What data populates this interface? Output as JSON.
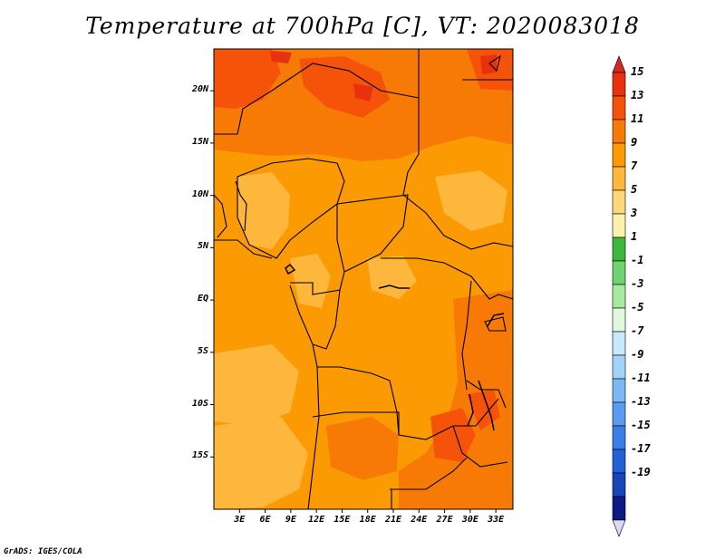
{
  "title": "Temperature at 700hPa [C], VT: 2020083018",
  "footer": "GrADS: IGES/COLA",
  "map": {
    "variable": "Temperature at 700hPa",
    "units": "C",
    "valid_time": "2020083018",
    "region": "Central Africa",
    "lon_range": [
      0,
      35
    ],
    "lat_range": [
      -20,
      24
    ]
  },
  "axes": {
    "y_ticks": [
      {
        "label": "20N",
        "lat": 20
      },
      {
        "label": "15N",
        "lat": 15
      },
      {
        "label": "10N",
        "lat": 10
      },
      {
        "label": "5N",
        "lat": 5
      },
      {
        "label": "EQ",
        "lat": 0
      },
      {
        "label": "5S",
        "lat": -5
      },
      {
        "label": "10S",
        "lat": -10
      },
      {
        "label": "15S",
        "lat": -15
      }
    ],
    "x_ticks": [
      {
        "label": "3E",
        "lon": 3
      },
      {
        "label": "6E",
        "lon": 6
      },
      {
        "label": "9E",
        "lon": 9
      },
      {
        "label": "12E",
        "lon": 12
      },
      {
        "label": "15E",
        "lon": 15
      },
      {
        "label": "18E",
        "lon": 18
      },
      {
        "label": "21E",
        "lon": 21
      },
      {
        "label": "24E",
        "lon": 24
      },
      {
        "label": "27E",
        "lon": 27
      },
      {
        "label": "30E",
        "lon": 30
      },
      {
        "label": "33E",
        "lon": 33
      }
    ]
  },
  "colorbar": {
    "max_arrow_color": "#d42a1e",
    "min_arrow_color": "#ddd8f2",
    "levels": [
      {
        "label": "15",
        "color": "#e8320f"
      },
      {
        "label": "13",
        "color": "#f5520a"
      },
      {
        "label": "11",
        "color": "#f77a07"
      },
      {
        "label": "9",
        "color": "#fb9a03"
      },
      {
        "label": "7",
        "color": "#fcb73c"
      },
      {
        "label": "5",
        "color": "#fdd778"
      },
      {
        "label": "3",
        "color": "#fcf2ad"
      },
      {
        "label": "1",
        "color": "#3cb73c"
      },
      {
        "label": "-1",
        "color": "#6fd46f"
      },
      {
        "label": "-3",
        "color": "#a8e8a0"
      },
      {
        "label": "-5",
        "color": "#e2f7df"
      },
      {
        "label": "-7",
        "color": "#c8e8fb"
      },
      {
        "label": "-9",
        "color": "#a2d2f9"
      },
      {
        "label": "-11",
        "color": "#7cb8f4"
      },
      {
        "label": "-13",
        "color": "#5a9bf0"
      },
      {
        "label": "-15",
        "color": "#3a7ee6"
      },
      {
        "label": "-17",
        "color": "#2260d6"
      },
      {
        "label": "-19",
        "color": "#1845b8"
      },
      {
        "label": "",
        "color": "#0c1a84"
      }
    ]
  }
}
